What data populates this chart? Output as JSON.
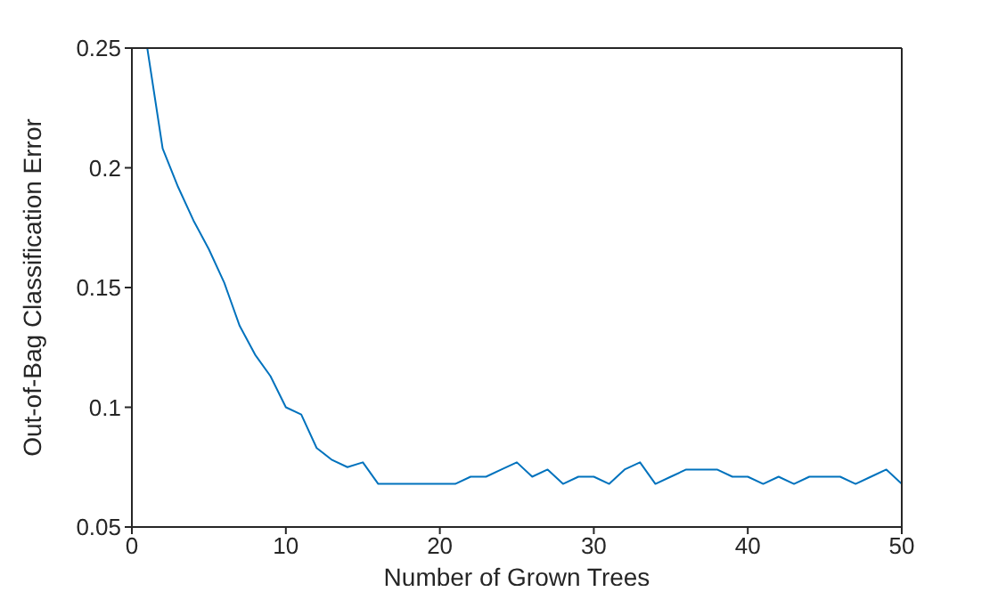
{
  "chart_data": {
    "type": "line",
    "xlabel": "Number of Grown Trees",
    "ylabel": "Out-of-Bag Classification Error",
    "x": [
      1,
      2,
      3,
      4,
      5,
      6,
      7,
      8,
      9,
      10,
      11,
      12,
      13,
      14,
      15,
      16,
      17,
      18,
      19,
      20,
      21,
      22,
      23,
      24,
      25,
      26,
      27,
      28,
      29,
      30,
      31,
      32,
      33,
      34,
      35,
      36,
      37,
      38,
      39,
      40,
      41,
      42,
      43,
      44,
      45,
      46,
      47,
      48,
      49,
      50
    ],
    "series": [
      {
        "color": "#0072bd",
        "values": [
          0.25,
          0.208,
          0.192,
          0.178,
          0.166,
          0.152,
          0.134,
          0.122,
          0.113,
          0.1,
          0.097,
          0.083,
          0.078,
          0.075,
          0.077,
          0.068,
          0.068,
          0.068,
          0.068,
          0.068,
          0.068,
          0.071,
          0.071,
          0.074,
          0.077,
          0.071,
          0.074,
          0.068,
          0.071,
          0.071,
          0.068,
          0.074,
          0.077,
          0.068,
          0.071,
          0.074,
          0.074,
          0.074,
          0.071,
          0.071,
          0.068,
          0.071,
          0.068,
          0.071,
          0.071,
          0.071,
          0.068,
          0.071,
          0.074,
          0.068
        ]
      }
    ],
    "xlim": [
      0,
      50
    ],
    "xticks": [
      0,
      10,
      20,
      30,
      40,
      50
    ],
    "ylim": [
      0.05,
      0.25
    ],
    "yticks": [
      0.05,
      0.1,
      0.15,
      0.2,
      0.25
    ],
    "grid": false,
    "legend": false,
    "marker": "none",
    "line_style": "solid"
  }
}
